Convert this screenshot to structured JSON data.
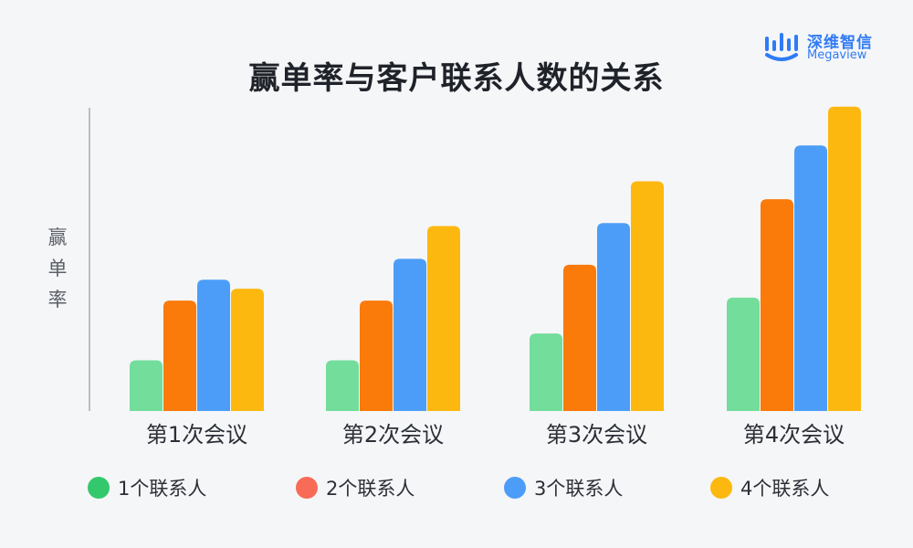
{
  "logo": {
    "name_cn": "深维智信",
    "name_en": "Megaview"
  },
  "chart_data": {
    "type": "bar",
    "title": "赢单率与客户联系人数的关系",
    "xlabel": "",
    "ylabel": "赢单率",
    "categories": [
      "第1次会议",
      "第2次会议",
      "第3次会议",
      "第4次会议"
    ],
    "series": [
      {
        "name": "1个联系人",
        "color": "#73dd9b",
        "legend_color": "#34c86d",
        "values": [
          17,
          17,
          26,
          38
        ]
      },
      {
        "name": "2个联系人",
        "color": "#fa7a0a",
        "legend_color": "#f86b57",
        "values": [
          37,
          37,
          49,
          71
        ]
      },
      {
        "name": "3个联系人",
        "color": "#4c9df8",
        "legend_color": "#4c9df8",
        "values": [
          44,
          51,
          63,
          89
        ]
      },
      {
        "name": "4个联系人",
        "color": "#fdb810",
        "legend_color": "#fdb810",
        "values": [
          41,
          62,
          77,
          102
        ]
      }
    ],
    "ylim": [
      0,
      105
    ],
    "grid": false,
    "legend_position": "bottom"
  }
}
